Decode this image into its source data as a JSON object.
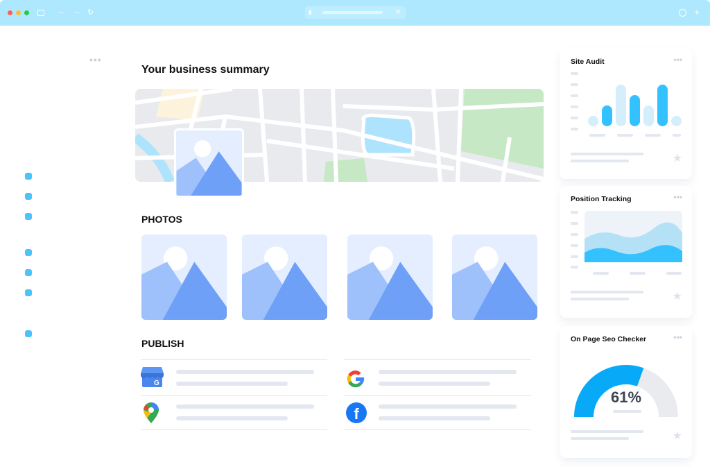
{
  "browser": {
    "icons": [
      "sidebar-icon",
      "back-icon",
      "forward-icon",
      "reload-icon",
      "lock-icon",
      "link-icon",
      "download-icon",
      "new-tab-icon"
    ],
    "window_controls": [
      "#fe5f57",
      "#febc2e",
      "#28c840"
    ]
  },
  "main": {
    "title": "Your business summary",
    "photos_label": "PHOTOS",
    "publish_label": "PUBLISH",
    "publish_items": [
      {
        "icon": "google-my-business-icon"
      },
      {
        "icon": "google-icon"
      },
      {
        "icon": "google-maps-icon"
      },
      {
        "icon": "facebook-icon"
      }
    ]
  },
  "cards": {
    "site_audit": {
      "title": "Site Audit",
      "bars": [
        {
          "value": 1,
          "highlight": false
        },
        {
          "value": 2,
          "highlight": true
        },
        {
          "value": 4,
          "highlight": false
        },
        {
          "value": 3,
          "highlight": true
        },
        {
          "value": 2,
          "highlight": false
        },
        {
          "value": 4,
          "highlight": true
        },
        {
          "value": 1,
          "highlight": false
        }
      ]
    },
    "position_tracking": {
      "title": "Position Tracking"
    },
    "seo_checker": {
      "title": "On Page Seo Checker",
      "score_text": "61%",
      "score": 61
    }
  },
  "colors": {
    "accent": "#33c2ff",
    "accent_light": "#d4eefb",
    "gauge": "#08a9f7",
    "gauge_track": "#e9ebef",
    "image_dark": "#6fa0f7",
    "image_light": "#9ec0fb"
  }
}
